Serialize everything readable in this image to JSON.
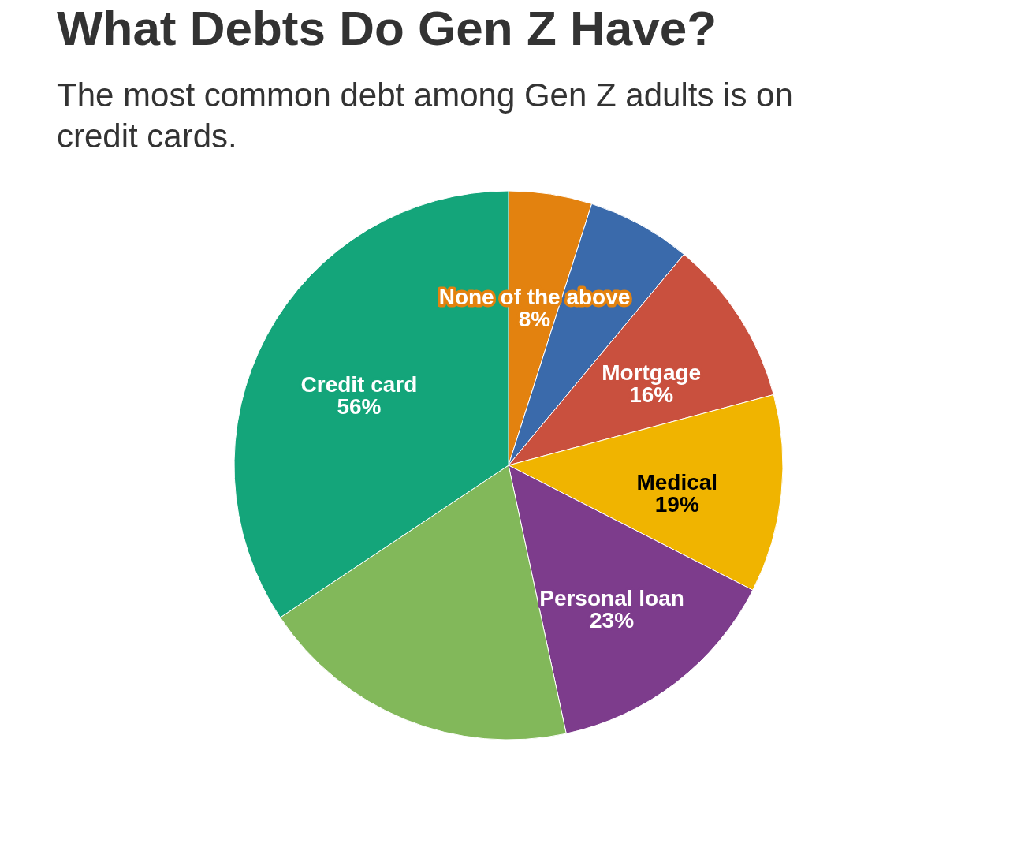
{
  "chart_data": {
    "type": "pie",
    "title": "What Debts Do Gen Z Have?",
    "subtitle": "The most common debt among Gen Z adults is on credit cards.",
    "categories": [
      "None of the above",
      null,
      "Mortgage",
      "Medical",
      "Personal loan",
      null,
      "Credit card"
    ],
    "values": [
      8,
      10,
      16,
      19,
      23,
      31,
      56
    ],
    "value_labels": [
      "8%",
      null,
      "16%",
      "19%",
      "23%",
      null,
      "56%"
    ],
    "colors": [
      "#e3820f",
      "#3a6aab",
      "#c9503e",
      "#f0b400",
      "#7d3c8c",
      "#82b85a",
      "#14a57a"
    ]
  }
}
